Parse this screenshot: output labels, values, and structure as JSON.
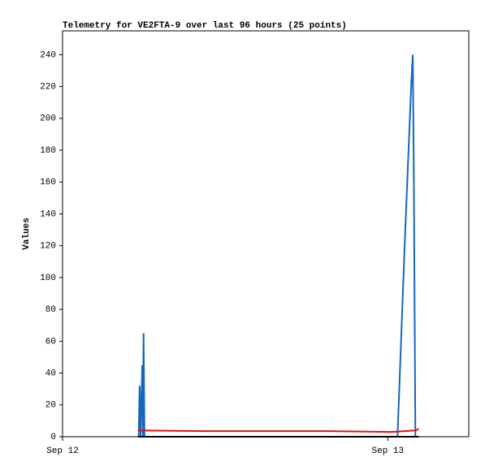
{
  "chart_data": {
    "type": "line",
    "title": "Telemetry for VE2FTA-9 over last 96 hours (25 points)",
    "y_label": "Values",
    "xlim": [
      0,
      1.249
    ],
    "xticks": [
      {
        "value": 0,
        "label": "Sep 12"
      },
      {
        "value": 1,
        "label": "Sep 13"
      }
    ],
    "ylim": [
      0,
      255
    ],
    "yticks": [
      0,
      20,
      40,
      60,
      80,
      100,
      120,
      140,
      160,
      180,
      200,
      220,
      240
    ],
    "series": [
      {
        "color": "#1565c0",
        "x": [
          0.234,
          0.237,
          0.24,
          0.242,
          0.245,
          0.247,
          0.249,
          0.252,
          1.03,
          1.052,
          1.072,
          1.077,
          1.08,
          1.085,
          1.095
        ],
        "values": [
          0,
          32,
          0,
          20,
          45,
          0,
          65,
          0,
          0,
          120,
          220,
          240,
          170,
          0,
          0
        ]
      },
      {
        "color": "#e01010",
        "x": [
          0.232,
          0.444,
          0.818,
          1.012,
          1.087,
          1.095
        ],
        "values": [
          4,
          3.5,
          3.5,
          3,
          4,
          5
        ]
      },
      {
        "color": "#000000",
        "x": [
          0.232,
          1.095
        ],
        "values": [
          0,
          0
        ]
      }
    ]
  }
}
